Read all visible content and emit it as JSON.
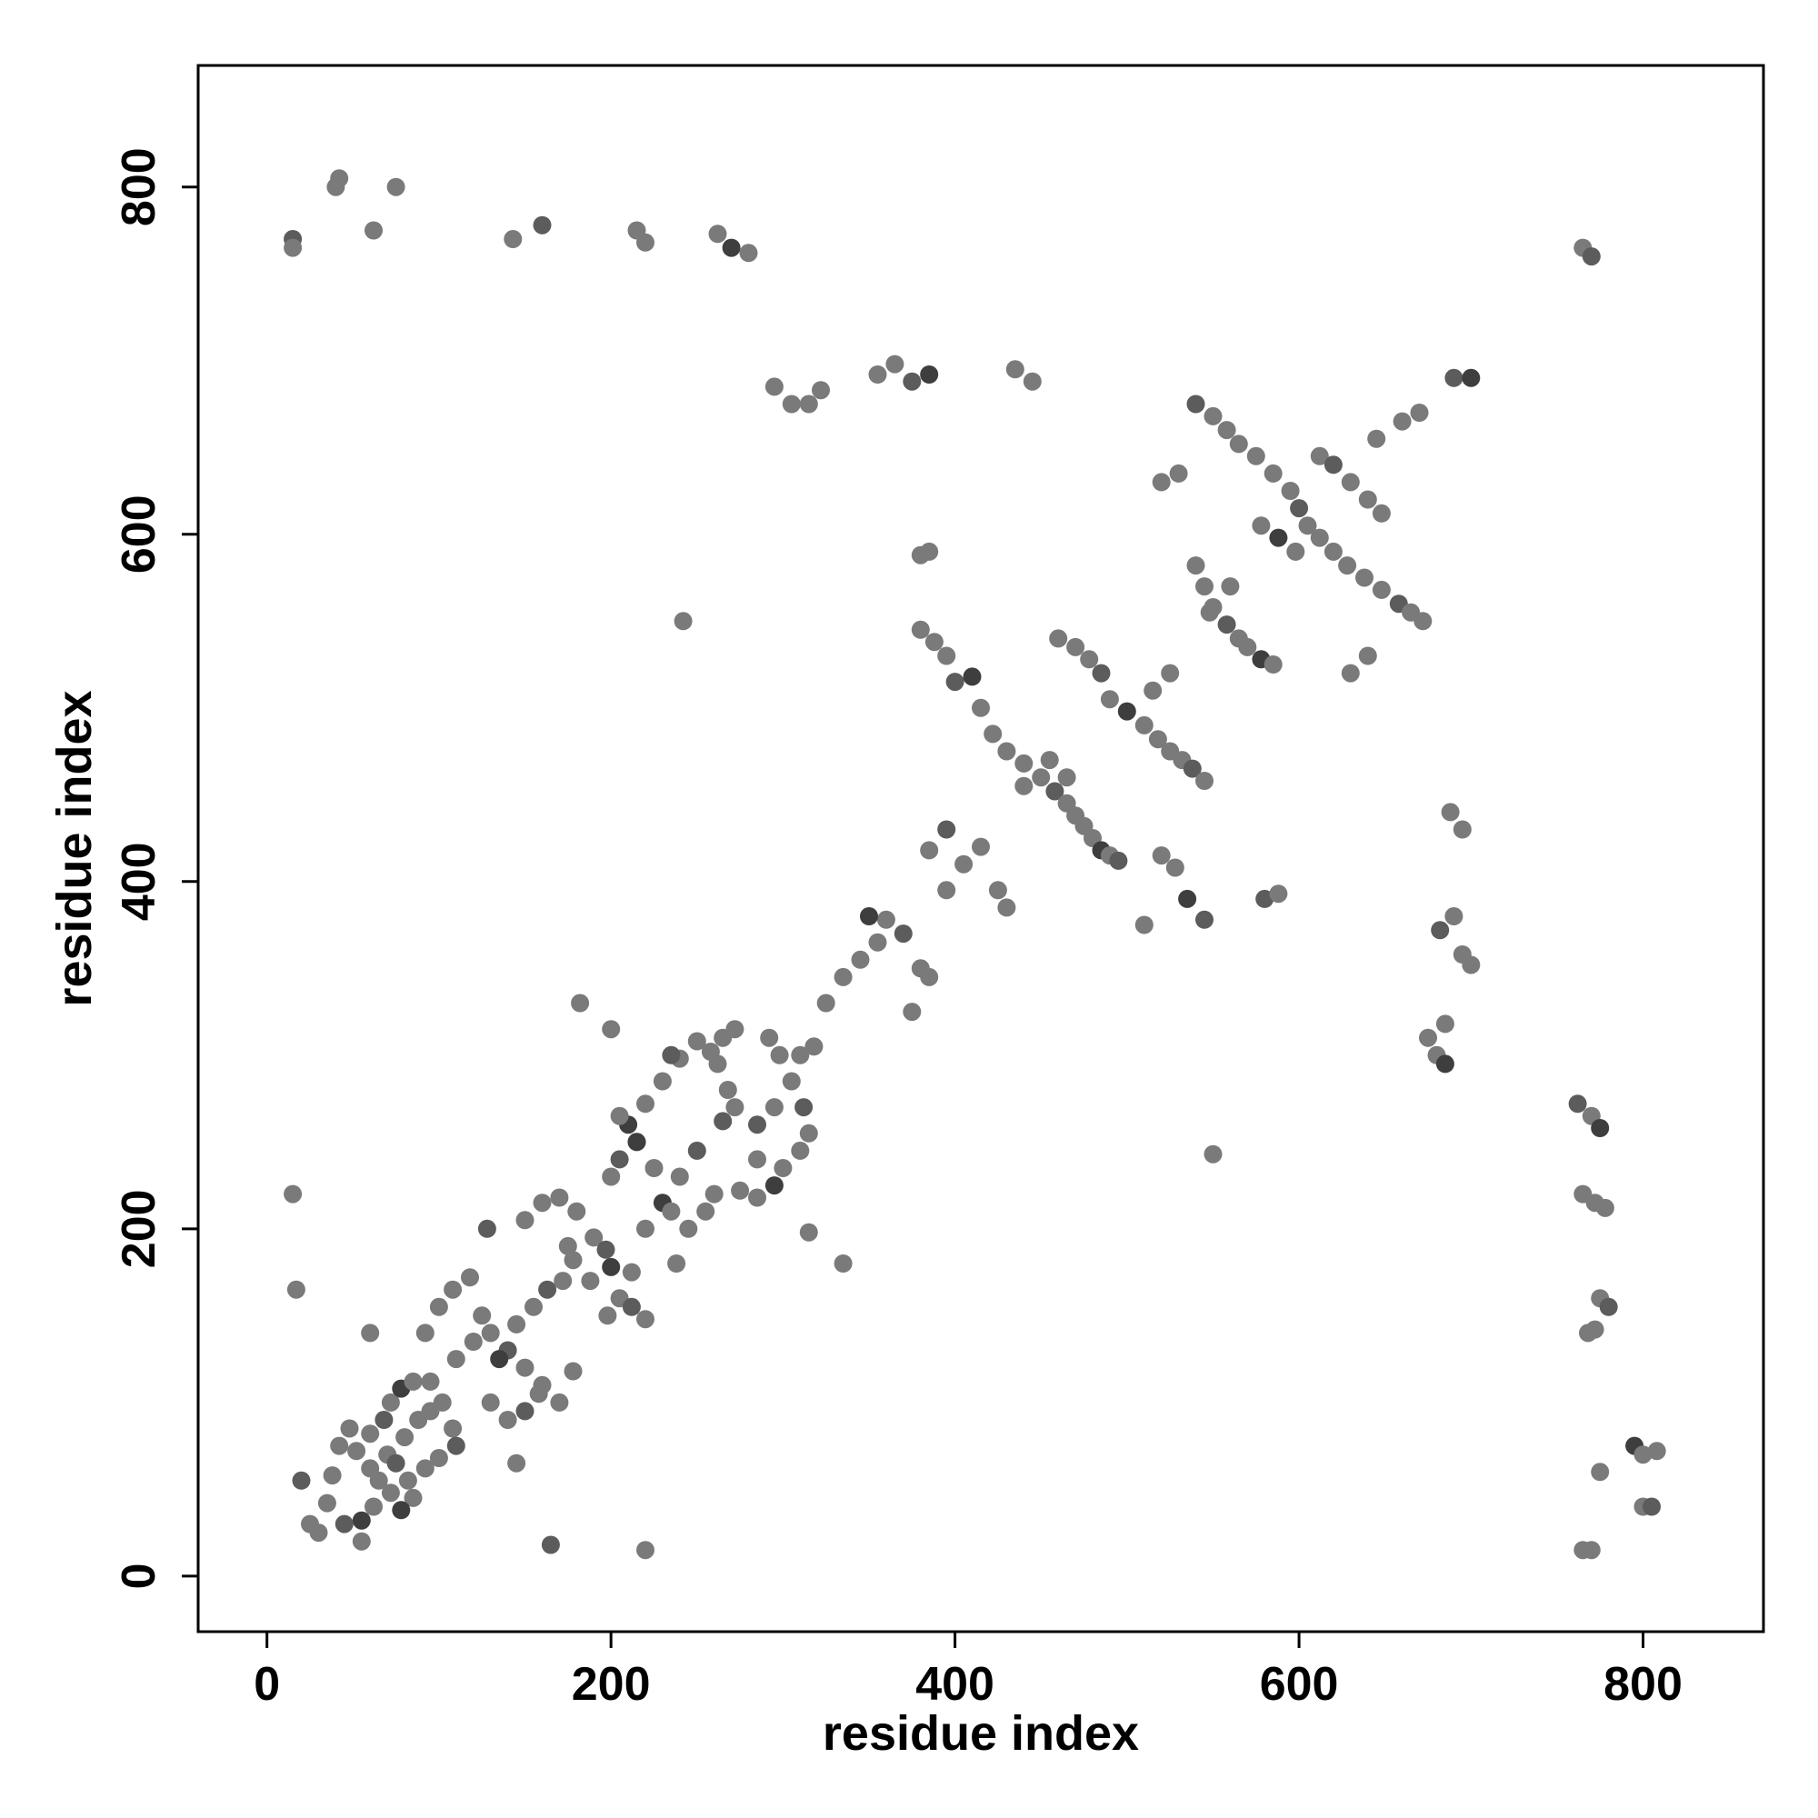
{
  "chart_data": {
    "type": "scatter",
    "xlabel": "residue index",
    "ylabel": "residue index",
    "xlim": [
      -40,
      870
    ],
    "ylim": [
      -32,
      870
    ],
    "xticks": [
      0,
      200,
      400,
      600,
      800
    ],
    "yticks": [
      0,
      200,
      400,
      600,
      800
    ],
    "xtick_labels": [
      "0",
      "200",
      "400",
      "600",
      "800"
    ],
    "ytick_labels": [
      "0",
      "200",
      "400",
      "600",
      "800"
    ],
    "grid": false,
    "legend": "none",
    "marker_colors": [
      "#7a7a7a",
      "#5c5c5c",
      "#3e3e3e"
    ],
    "points": [
      [
        15,
        770
      ],
      [
        15,
        765
      ],
      [
        42,
        805
      ],
      [
        40,
        800
      ],
      [
        75,
        800
      ],
      [
        62,
        775
      ],
      [
        143,
        770
      ],
      [
        160,
        778
      ],
      [
        215,
        775
      ],
      [
        220,
        768
      ],
      [
        262,
        773
      ],
      [
        270,
        765
      ],
      [
        280,
        762
      ],
      [
        765,
        765
      ],
      [
        770,
        760
      ],
      [
        295,
        685
      ],
      [
        305,
        675
      ],
      [
        315,
        675
      ],
      [
        322,
        683
      ],
      [
        355,
        692
      ],
      [
        365,
        698
      ],
      [
        375,
        688
      ],
      [
        385,
        692
      ],
      [
        435,
        695
      ],
      [
        445,
        688
      ],
      [
        242,
        550
      ],
      [
        15,
        220
      ],
      [
        17,
        165
      ],
      [
        165,
        18
      ],
      [
        220,
        15
      ],
      [
        765,
        15
      ],
      [
        770,
        15
      ],
      [
        775,
        60
      ],
      [
        795,
        75
      ],
      [
        800,
        40
      ],
      [
        805,
        40
      ],
      [
        550,
        243
      ],
      [
        38,
        58
      ],
      [
        42,
        75
      ],
      [
        48,
        85
      ],
      [
        52,
        72
      ],
      [
        60,
        82
      ],
      [
        68,
        90
      ],
      [
        72,
        100
      ],
      [
        78,
        108
      ],
      [
        85,
        112
      ],
      [
        95,
        112
      ],
      [
        102,
        100
      ],
      [
        108,
        85
      ],
      [
        110,
        75
      ],
      [
        100,
        68
      ],
      [
        92,
        62
      ],
      [
        82,
        55
      ],
      [
        72,
        48
      ],
      [
        62,
        40
      ],
      [
        55,
        32
      ],
      [
        45,
        30
      ],
      [
        35,
        42
      ],
      [
        60,
        62
      ],
      [
        70,
        70
      ],
      [
        80,
        80
      ],
      [
        88,
        90
      ],
      [
        95,
        95
      ],
      [
        75,
        65
      ],
      [
        65,
        55
      ],
      [
        85,
        45
      ],
      [
        78,
        38
      ],
      [
        55,
        20
      ],
      [
        30,
        25
      ],
      [
        25,
        30
      ],
      [
        20,
        55
      ],
      [
        92,
        140
      ],
      [
        100,
        155
      ],
      [
        108,
        165
      ],
      [
        118,
        172
      ],
      [
        125,
        150
      ],
      [
        130,
        140
      ],
      [
        140,
        130
      ],
      [
        150,
        120
      ],
      [
        160,
        110
      ],
      [
        170,
        100
      ],
      [
        178,
        118
      ],
      [
        130,
        100
      ],
      [
        140,
        90
      ],
      [
        150,
        95
      ],
      [
        158,
        105
      ],
      [
        110,
        125
      ],
      [
        120,
        135
      ],
      [
        135,
        125
      ],
      [
        145,
        145
      ],
      [
        155,
        155
      ],
      [
        163,
        165
      ],
      [
        172,
        170
      ],
      [
        150,
        205
      ],
      [
        160,
        215
      ],
      [
        170,
        218
      ],
      [
        180,
        210
      ],
      [
        190,
        195
      ],
      [
        197,
        188
      ],
      [
        200,
        178
      ],
      [
        188,
        170
      ],
      [
        178,
        182
      ],
      [
        175,
        190
      ],
      [
        145,
        65
      ],
      [
        60,
        140
      ],
      [
        128,
        200
      ],
      [
        198,
        150
      ],
      [
        205,
        160
      ],
      [
        212,
        175
      ],
      [
        220,
        200
      ],
      [
        230,
        215
      ],
      [
        240,
        230
      ],
      [
        250,
        245
      ],
      [
        260,
        220
      ],
      [
        255,
        210
      ],
      [
        245,
        200
      ],
      [
        235,
        210
      ],
      [
        225,
        235
      ],
      [
        215,
        250
      ],
      [
        205,
        240
      ],
      [
        200,
        230
      ],
      [
        210,
        260
      ],
      [
        220,
        272
      ],
      [
        230,
        285
      ],
      [
        240,
        298
      ],
      [
        250,
        308
      ],
      [
        212,
        155
      ],
      [
        220,
        148
      ],
      [
        238,
        180
      ],
      [
        200,
        315
      ],
      [
        182,
        330
      ],
      [
        205,
        265
      ],
      [
        215,
        250
      ],
      [
        235,
        300
      ],
      [
        258,
        302
      ],
      [
        265,
        310
      ],
      [
        272,
        315
      ],
      [
        262,
        295
      ],
      [
        268,
        280
      ],
      [
        272,
        270
      ],
      [
        265,
        262
      ],
      [
        275,
        222
      ],
      [
        285,
        218
      ],
      [
        295,
        225
      ],
      [
        300,
        235
      ],
      [
        310,
        245
      ],
      [
        315,
        255
      ],
      [
        312,
        270
      ],
      [
        305,
        285
      ],
      [
        298,
        300
      ],
      [
        292,
        310
      ],
      [
        310,
        300
      ],
      [
        318,
        305
      ],
      [
        295,
        270
      ],
      [
        285,
        260
      ],
      [
        285,
        240
      ],
      [
        325,
        330
      ],
      [
        335,
        345
      ],
      [
        345,
        355
      ],
      [
        355,
        365
      ],
      [
        360,
        378
      ],
      [
        370,
        370
      ],
      [
        380,
        350
      ],
      [
        385,
        345
      ],
      [
        375,
        325
      ],
      [
        350,
        380
      ],
      [
        335,
        180
      ],
      [
        315,
        198
      ],
      [
        395,
        430
      ],
      [
        385,
        418
      ],
      [
        395,
        395
      ],
      [
        405,
        410
      ],
      [
        415,
        420
      ],
      [
        425,
        395
      ],
      [
        430,
        385
      ],
      [
        400,
        515
      ],
      [
        410,
        518
      ],
      [
        415,
        500
      ],
      [
        422,
        485
      ],
      [
        430,
        475
      ],
      [
        440,
        468
      ],
      [
        450,
        460
      ],
      [
        458,
        452
      ],
      [
        465,
        445
      ],
      [
        470,
        438
      ],
      [
        475,
        432
      ],
      [
        480,
        425
      ],
      [
        485,
        418
      ],
      [
        490,
        415
      ],
      [
        495,
        412
      ],
      [
        440,
        455
      ],
      [
        455,
        470
      ],
      [
        465,
        460
      ],
      [
        460,
        540
      ],
      [
        470,
        535
      ],
      [
        478,
        528
      ],
      [
        485,
        520
      ],
      [
        490,
        505
      ],
      [
        500,
        498
      ],
      [
        510,
        490
      ],
      [
        518,
        482
      ],
      [
        525,
        475
      ],
      [
        532,
        470
      ],
      [
        538,
        465
      ],
      [
        545,
        458
      ],
      [
        515,
        510
      ],
      [
        525,
        520
      ],
      [
        520,
        415
      ],
      [
        528,
        408
      ],
      [
        535,
        390
      ],
      [
        545,
        378
      ],
      [
        510,
        375
      ],
      [
        520,
        630
      ],
      [
        530,
        635
      ],
      [
        540,
        582
      ],
      [
        545,
        570
      ],
      [
        550,
        558
      ],
      [
        558,
        548
      ],
      [
        565,
        540
      ],
      [
        570,
        535
      ],
      [
        578,
        528
      ],
      [
        585,
        525
      ],
      [
        560,
        570
      ],
      [
        548,
        555
      ],
      [
        540,
        675
      ],
      [
        550,
        668
      ],
      [
        558,
        660
      ],
      [
        565,
        652
      ],
      [
        575,
        645
      ],
      [
        585,
        635
      ],
      [
        595,
        625
      ],
      [
        600,
        615
      ],
      [
        605,
        605
      ],
      [
        612,
        598
      ],
      [
        620,
        590
      ],
      [
        628,
        582
      ],
      [
        638,
        575
      ],
      [
        648,
        568
      ],
      [
        658,
        560
      ],
      [
        665,
        555
      ],
      [
        672,
        550
      ],
      [
        578,
        605
      ],
      [
        588,
        598
      ],
      [
        598,
        590
      ],
      [
        612,
        645
      ],
      [
        620,
        640
      ],
      [
        630,
        630
      ],
      [
        640,
        620
      ],
      [
        648,
        612
      ],
      [
        645,
        655
      ],
      [
        660,
        665
      ],
      [
        670,
        670
      ],
      [
        690,
        690
      ],
      [
        700,
        690
      ],
      [
        630,
        520
      ],
      [
        640,
        530
      ],
      [
        688,
        440
      ],
      [
        695,
        430
      ],
      [
        690,
        380
      ],
      [
        682,
        372
      ],
      [
        695,
        358
      ],
      [
        700,
        352
      ],
      [
        675,
        310
      ],
      [
        680,
        300
      ],
      [
        685,
        295
      ],
      [
        685,
        318
      ],
      [
        580,
        390
      ],
      [
        588,
        393
      ],
      [
        380,
        588
      ],
      [
        385,
        590
      ],
      [
        380,
        545
      ],
      [
        388,
        538
      ],
      [
        395,
        530
      ],
      [
        762,
        272
      ],
      [
        770,
        265
      ],
      [
        775,
        258
      ],
      [
        765,
        220
      ],
      [
        772,
        215
      ],
      [
        778,
        212
      ],
      [
        775,
        160
      ],
      [
        780,
        155
      ],
      [
        772,
        142
      ],
      [
        768,
        140
      ],
      [
        800,
        70
      ],
      [
        808,
        72
      ]
    ]
  }
}
